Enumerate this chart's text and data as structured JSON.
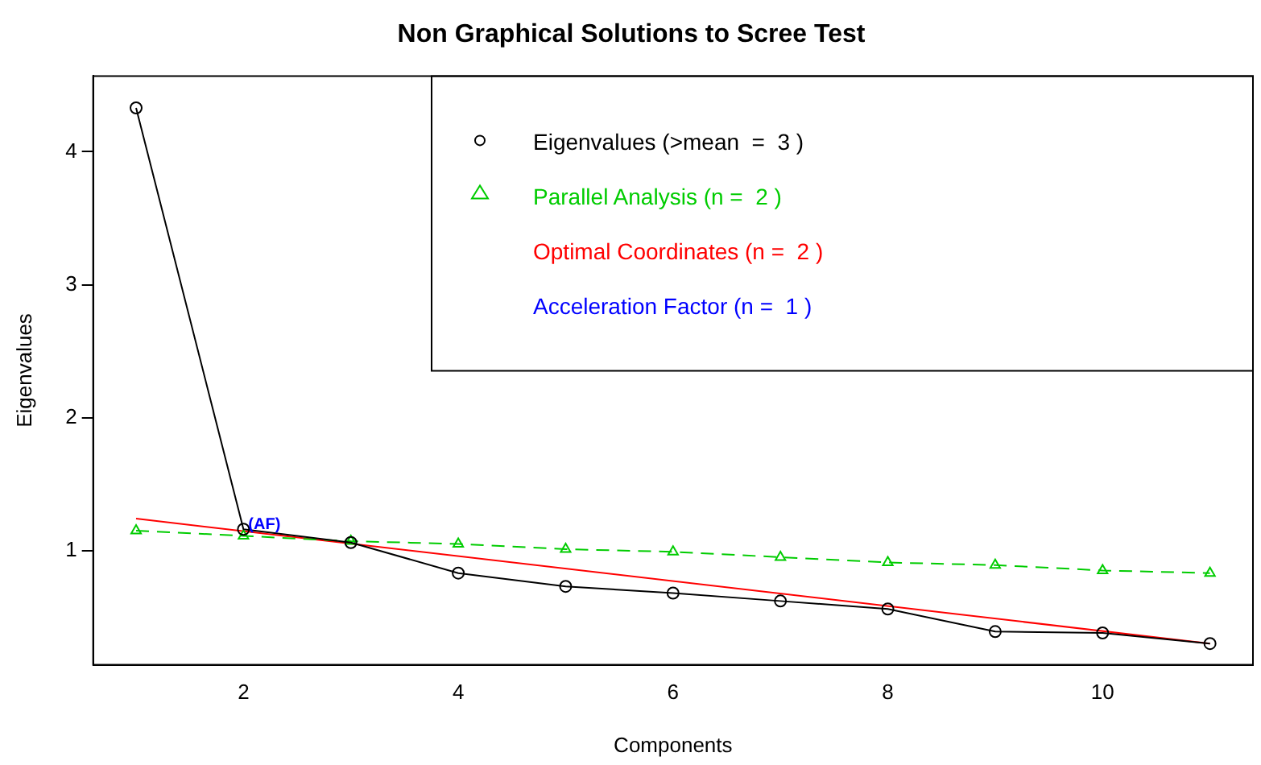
{
  "chart_data": {
    "type": "line",
    "title": "Non Graphical Solutions to Scree Test",
    "xlabel": "Components",
    "ylabel": "Eigenvalues",
    "x": [
      1,
      2,
      3,
      4,
      5,
      6,
      7,
      8,
      9,
      10,
      11
    ],
    "xlim": [
      0.6,
      11.4
    ],
    "xticks": [
      2,
      4,
      6,
      8,
      10
    ],
    "ylim": [
      0.14,
      4.57
    ],
    "yticks": [
      1,
      2,
      3,
      4
    ],
    "grid": false,
    "legend": "top right",
    "series": [
      {
        "name": "Eigenvalues (>mean  =  3 )",
        "color": "#000000",
        "marker": "circle",
        "line_style": "solid",
        "values": [
          4.33,
          1.16,
          1.06,
          0.83,
          0.73,
          0.68,
          0.62,
          0.56,
          0.39,
          0.38,
          0.3
        ]
      },
      {
        "name": "Parallel Analysis (n =  2 )",
        "color": "#00cc00",
        "marker": "triangle",
        "line_style": "dashed",
        "values": [
          1.15,
          1.11,
          1.07,
          1.05,
          1.01,
          0.99,
          0.95,
          0.91,
          0.89,
          0.85,
          0.83
        ]
      },
      {
        "name": "Optimal Coordinates (n =  2 )",
        "color": "#ff0000",
        "marker": "none",
        "line_style": "solid",
        "x": [
          1,
          11
        ],
        "values": [
          1.24,
          0.3
        ]
      }
    ],
    "annotations": [
      "Acceleration Factor (n =  1 )",
      {
        "text": "(AF)",
        "x": 2,
        "y": 1.16
      }
    ]
  }
}
